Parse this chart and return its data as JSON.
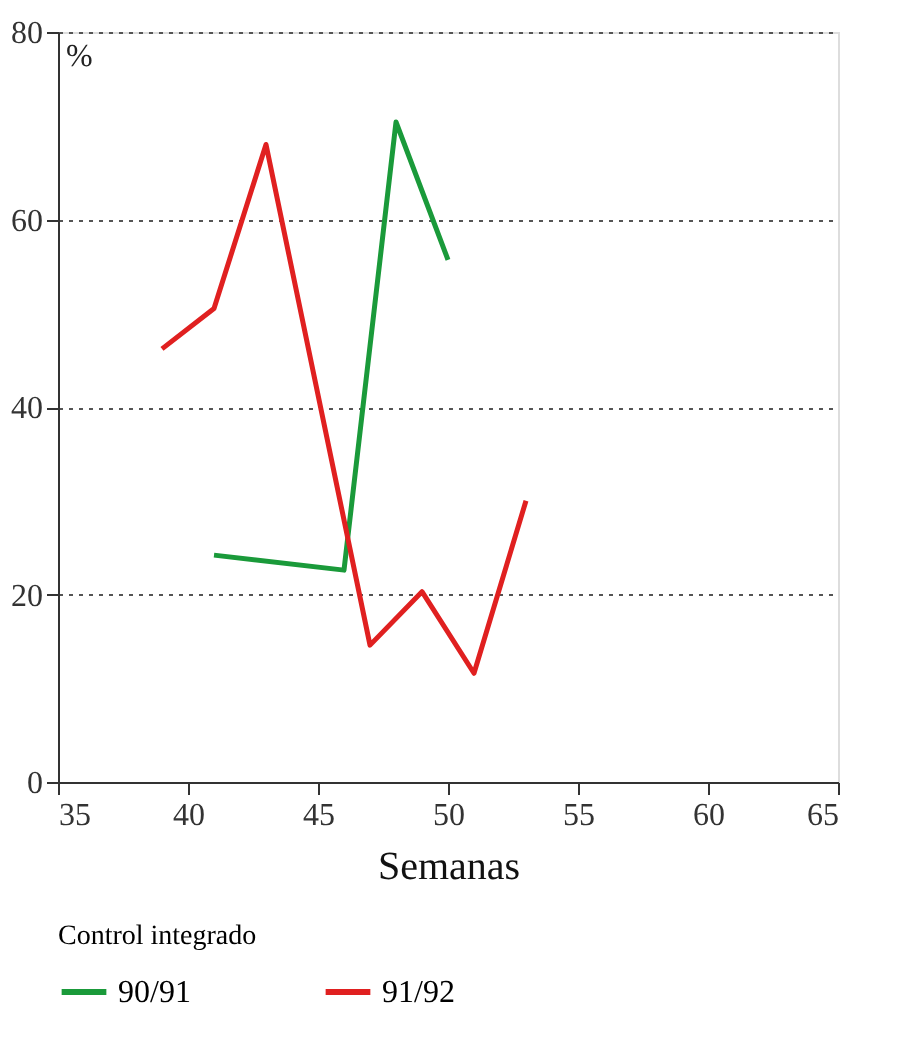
{
  "chart_data": {
    "type": "line",
    "xlabel": "Semanas",
    "ylabel": "%",
    "legend_title": "Control integrado",
    "legend": "bottom",
    "grid": "y",
    "line_style": "solid",
    "marker": "none",
    "xlim": [
      35,
      65
    ],
    "xticks": [
      35,
      40,
      45,
      50,
      55,
      60,
      65
    ],
    "ylim": [
      0,
      80
    ],
    "yticks": [
      0,
      20,
      40,
      60,
      80
    ],
    "series": [
      {
        "name": "90/91",
        "color": "#1a9a3a",
        "x": [
          41,
          46,
          48,
          50
        ],
        "values": [
          24.2,
          22.6,
          70.4,
          55.7
        ]
      },
      {
        "name": "91/92",
        "color": "#e02020",
        "x": [
          39,
          41,
          43,
          47,
          49,
          51,
          53
        ],
        "values": [
          46.2,
          50.5,
          68,
          14.6,
          20.3,
          11.6,
          30
        ]
      }
    ]
  }
}
